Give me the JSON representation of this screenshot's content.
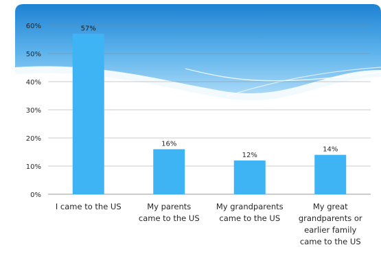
{
  "chart_data": {
    "type": "bar",
    "categories": [
      [
        "I came to the US"
      ],
      [
        "My parents",
        "came to the US"
      ],
      [
        "My grandparents",
        "came to the US"
      ],
      [
        "My great",
        "grandparents or",
        "earlier family",
        "came to the US"
      ]
    ],
    "values": [
      57,
      16,
      12,
      14
    ],
    "data_labels": [
      "57%",
      "16%",
      "12%",
      "14%"
    ],
    "y_ticks": [
      "0%",
      "10%",
      "20%",
      "30%",
      "40%",
      "50%",
      "60%"
    ],
    "ylim": [
      0,
      60
    ],
    "grid": true,
    "legend": false,
    "colors": {
      "bar": "#3fb4f5",
      "background_top": "#1d82d3",
      "background_mid": "#5fb4ec",
      "wave": "#eaf5fd",
      "grid": "#8c8c8c",
      "text": "#262626"
    }
  }
}
